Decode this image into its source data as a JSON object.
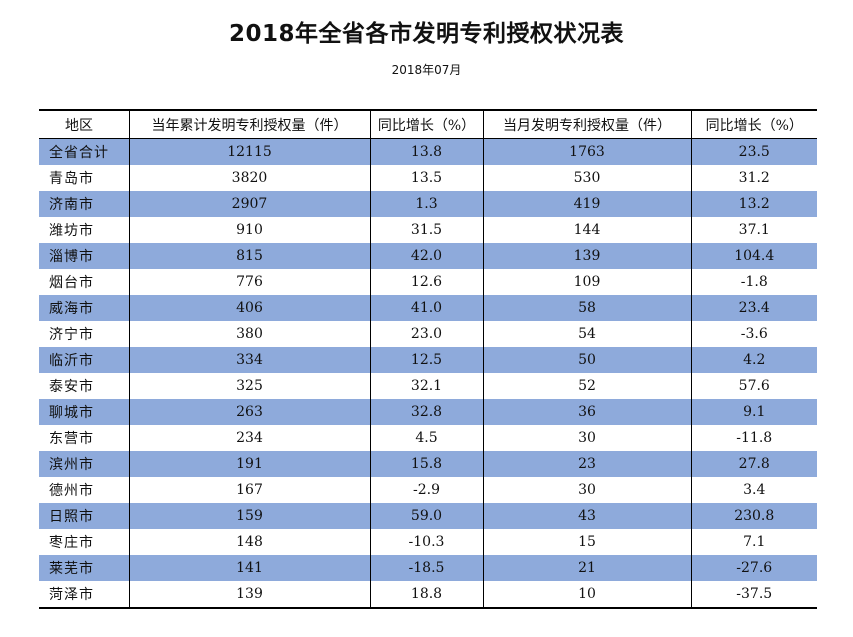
{
  "title": "2018年全省各市发明专利授权状况表",
  "subtitle": "2018年07月",
  "colors": {
    "shaded_row": "#8eaadb",
    "plain_row": "#ffffff"
  },
  "table": {
    "headers": [
      "地区",
      "当年累计发明专利授权量（件）",
      "同比增长（%）",
      "当月发明专利授权量（件）",
      "同比增长（%）"
    ],
    "rows": [
      {
        "region": "全省合计",
        "ytd": "12115",
        "ytd_yoy": "13.8",
        "month": "1763",
        "month_yoy": "23.5"
      },
      {
        "region": "青岛市",
        "ytd": "3820",
        "ytd_yoy": "13.5",
        "month": "530",
        "month_yoy": "31.2"
      },
      {
        "region": "济南市",
        "ytd": "2907",
        "ytd_yoy": "1.3",
        "month": "419",
        "month_yoy": "13.2"
      },
      {
        "region": "潍坊市",
        "ytd": "910",
        "ytd_yoy": "31.5",
        "month": "144",
        "month_yoy": "37.1"
      },
      {
        "region": "淄博市",
        "ytd": "815",
        "ytd_yoy": "42.0",
        "month": "139",
        "month_yoy": "104.4"
      },
      {
        "region": "烟台市",
        "ytd": "776",
        "ytd_yoy": "12.6",
        "month": "109",
        "month_yoy": "-1.8"
      },
      {
        "region": "威海市",
        "ytd": "406",
        "ytd_yoy": "41.0",
        "month": "58",
        "month_yoy": "23.4"
      },
      {
        "region": "济宁市",
        "ytd": "380",
        "ytd_yoy": "23.0",
        "month": "54",
        "month_yoy": "-3.6"
      },
      {
        "region": "临沂市",
        "ytd": "334",
        "ytd_yoy": "12.5",
        "month": "50",
        "month_yoy": "4.2"
      },
      {
        "region": "泰安市",
        "ytd": "325",
        "ytd_yoy": "32.1",
        "month": "52",
        "month_yoy": "57.6"
      },
      {
        "region": "聊城市",
        "ytd": "263",
        "ytd_yoy": "32.8",
        "month": "36",
        "month_yoy": "9.1"
      },
      {
        "region": "东营市",
        "ytd": "234",
        "ytd_yoy": "4.5",
        "month": "30",
        "month_yoy": "-11.8"
      },
      {
        "region": "滨州市",
        "ytd": "191",
        "ytd_yoy": "15.8",
        "month": "23",
        "month_yoy": "27.8"
      },
      {
        "region": "德州市",
        "ytd": "167",
        "ytd_yoy": "-2.9",
        "month": "30",
        "month_yoy": "3.4"
      },
      {
        "region": "日照市",
        "ytd": "159",
        "ytd_yoy": "59.0",
        "month": "43",
        "month_yoy": "230.8"
      },
      {
        "region": "枣庄市",
        "ytd": "148",
        "ytd_yoy": "-10.3",
        "month": "15",
        "month_yoy": "7.1"
      },
      {
        "region": "莱芜市",
        "ytd": "141",
        "ytd_yoy": "-18.5",
        "month": "21",
        "month_yoy": "-27.6"
      },
      {
        "region": "菏泽市",
        "ytd": "139",
        "ytd_yoy": "18.8",
        "month": "10",
        "month_yoy": "-37.5"
      }
    ]
  }
}
